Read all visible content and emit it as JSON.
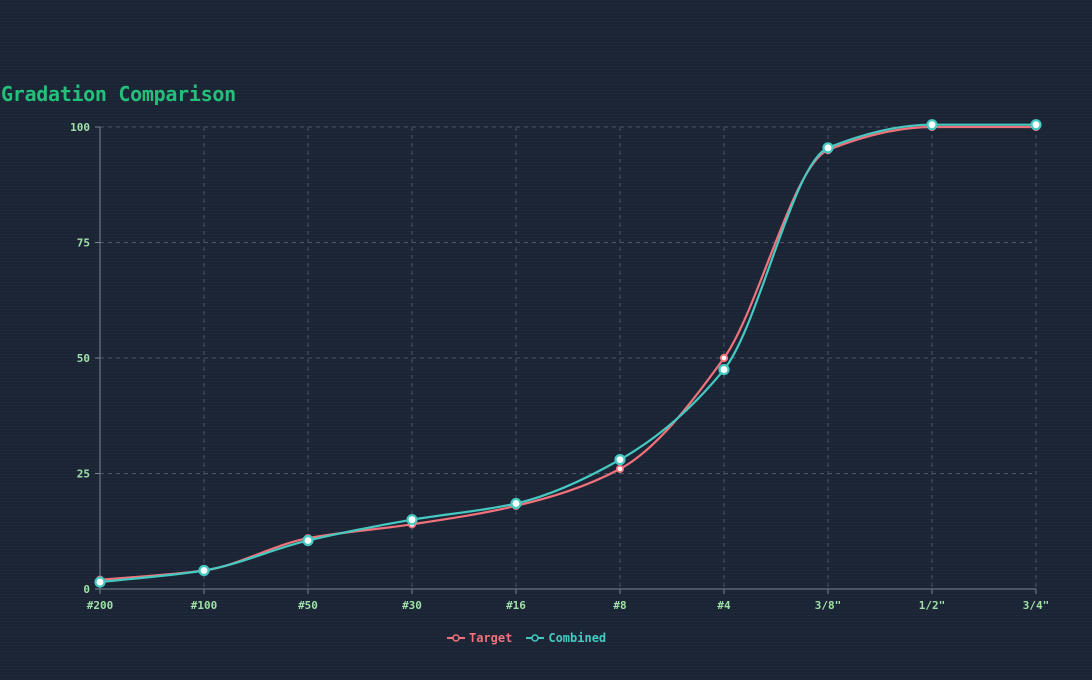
{
  "title": "Gradation Comparison",
  "colors": {
    "background": "#1c2536",
    "title": "#22c07a",
    "tick_label": "#9fe0a8",
    "grid": "#4a5568",
    "axis": "#7a8494"
  },
  "legend": {
    "position": "bottom-center",
    "items": [
      {
        "label": "Target",
        "color": "#f0727b"
      },
      {
        "label": "Combined",
        "color": "#45c9c1"
      }
    ]
  },
  "chart_data": {
    "type": "line",
    "title": "Gradation Comparison",
    "xlabel": "",
    "ylabel": "",
    "categories": [
      "#200",
      "#100",
      "#50",
      "#30",
      "#16",
      "#8",
      "#4",
      "3/8\"",
      "1/2\"",
      "3/4\""
    ],
    "ylim": [
      0,
      100
    ],
    "yticks": [
      0,
      25,
      50,
      75,
      100
    ],
    "grid": true,
    "legend": "bottom",
    "series": [
      {
        "name": "Target",
        "color": "#f0727b",
        "values": [
          2,
          4,
          11,
          14,
          18,
          26,
          50,
          95,
          100,
          100
        ]
      },
      {
        "name": "Combined",
        "color": "#45c9c1",
        "values": [
          1.5,
          4,
          10.5,
          15,
          18.5,
          28,
          47.5,
          95.5,
          100.5,
          100.5
        ]
      }
    ]
  }
}
